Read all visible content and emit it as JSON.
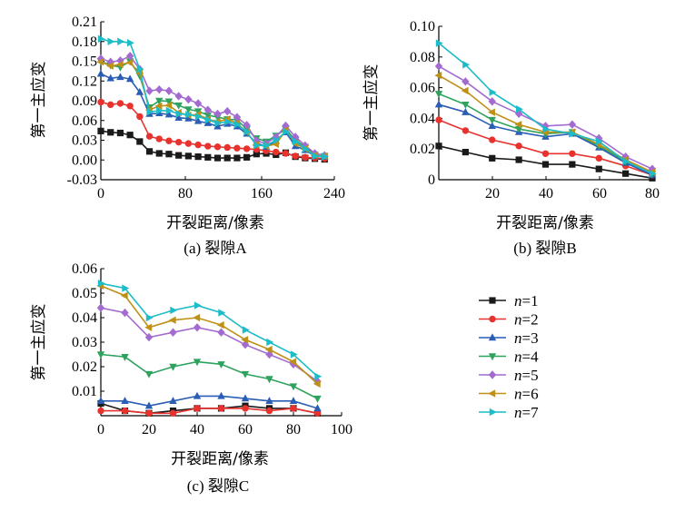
{
  "chart_data": [
    {
      "type": "line",
      "caption": "(a) 裂隙A",
      "xlabel": "开裂距离/像素",
      "ylabel": "第一主应变",
      "xlim": [
        0,
        240
      ],
      "ylim": [
        -0.03,
        0.21
      ],
      "xticks": [
        0,
        80,
        160,
        240
      ],
      "yticks": [
        "-0.03",
        "0.00",
        "0.03",
        "0.06",
        "0.09",
        "0.12",
        "0.15",
        "0.18",
        "0.21"
      ],
      "x": [
        0,
        10,
        20,
        30,
        40,
        50,
        60,
        70,
        80,
        90,
        100,
        110,
        120,
        130,
        140,
        150,
        160,
        170,
        180,
        190,
        200,
        210,
        220,
        230
      ],
      "series": [
        {
          "name": "n=1",
          "values": [
            0.044,
            0.042,
            0.041,
            0.038,
            0.028,
            0.013,
            0.01,
            0.009,
            0.007,
            0.006,
            0.005,
            0.004,
            0.003,
            0.003,
            0.003,
            0.004,
            0.009,
            0.01,
            0.008,
            0.011,
            0.005,
            0.003,
            0.002,
            0.001
          ]
        },
        {
          "name": "n=2",
          "values": [
            0.088,
            0.084,
            0.086,
            0.082,
            0.066,
            0.036,
            0.032,
            0.029,
            0.027,
            0.025,
            0.023,
            0.021,
            0.02,
            0.019,
            0.018,
            0.017,
            0.016,
            0.014,
            0.012,
            0.01,
            0.006,
            0.004,
            0.003,
            0.002
          ]
        },
        {
          "name": "n=3",
          "values": [
            0.131,
            0.124,
            0.126,
            0.123,
            0.103,
            0.07,
            0.071,
            0.069,
            0.064,
            0.063,
            0.059,
            0.056,
            0.051,
            0.055,
            0.051,
            0.04,
            0.026,
            0.02,
            0.029,
            0.042,
            0.021,
            0.015,
            0.006,
            0.005
          ]
        },
        {
          "name": "n=4",
          "values": [
            0.15,
            0.144,
            0.141,
            0.15,
            0.128,
            0.08,
            0.09,
            0.089,
            0.083,
            0.077,
            0.074,
            0.068,
            0.065,
            0.062,
            0.061,
            0.047,
            0.033,
            0.028,
            0.037,
            0.047,
            0.03,
            0.02,
            0.008,
            0.006
          ]
        },
        {
          "name": "n=5",
          "values": [
            0.154,
            0.149,
            0.151,
            0.158,
            0.138,
            0.105,
            0.107,
            0.105,
            0.097,
            0.092,
            0.086,
            0.076,
            0.07,
            0.074,
            0.065,
            0.053,
            0.029,
            0.025,
            0.035,
            0.052,
            0.035,
            0.022,
            0.01,
            0.007
          ]
        },
        {
          "name": "n=6",
          "values": [
            0.149,
            0.143,
            0.145,
            0.148,
            0.132,
            0.076,
            0.082,
            0.083,
            0.072,
            0.068,
            0.069,
            0.062,
            0.058,
            0.062,
            0.056,
            0.042,
            0.023,
            0.021,
            0.024,
            0.045,
            0.025,
            0.017,
            0.007,
            0.006
          ]
        },
        {
          "name": "n=7",
          "values": [
            0.184,
            0.18,
            0.18,
            0.178,
            0.138,
            0.073,
            0.075,
            0.075,
            0.07,
            0.069,
            0.066,
            0.061,
            0.056,
            0.058,
            0.054,
            0.043,
            0.022,
            0.022,
            0.03,
            0.043,
            0.028,
            0.017,
            0.006,
            0.005
          ]
        }
      ]
    },
    {
      "type": "line",
      "caption": "(b) 裂隙B",
      "xlabel": "开裂距离/像素",
      "ylabel": "第一主应变",
      "xlim": [
        0,
        80
      ],
      "ylim": [
        0,
        0.1
      ],
      "xticks": [
        20,
        40,
        60,
        80
      ],
      "yticks": [
        "0",
        "0.02",
        "0.04",
        "0.06",
        "0.08",
        "0.10"
      ],
      "x": [
        0,
        10,
        20,
        30,
        40,
        50,
        60,
        70,
        80
      ],
      "series": [
        {
          "name": "n=1",
          "values": [
            0.022,
            0.018,
            0.014,
            0.013,
            0.01,
            0.01,
            0.007,
            0.004,
            0.001
          ]
        },
        {
          "name": "n=2",
          "values": [
            0.039,
            0.032,
            0.026,
            0.022,
            0.017,
            0.017,
            0.014,
            0.009,
            0.003
          ]
        },
        {
          "name": "n=3",
          "values": [
            0.049,
            0.044,
            0.035,
            0.031,
            0.028,
            0.03,
            0.021,
            0.011,
            0.003
          ]
        },
        {
          "name": "n=4",
          "values": [
            0.056,
            0.049,
            0.039,
            0.033,
            0.03,
            0.031,
            0.022,
            0.012,
            0.004
          ]
        },
        {
          "name": "n=5",
          "values": [
            0.074,
            0.064,
            0.051,
            0.043,
            0.035,
            0.036,
            0.027,
            0.015,
            0.007
          ]
        },
        {
          "name": "n=6",
          "values": [
            0.068,
            0.058,
            0.044,
            0.036,
            0.031,
            0.031,
            0.023,
            0.013,
            0.005
          ]
        },
        {
          "name": "n=7",
          "values": [
            0.089,
            0.075,
            0.057,
            0.046,
            0.033,
            0.03,
            0.025,
            0.012,
            0.004
          ]
        }
      ]
    },
    {
      "type": "line",
      "caption": "(c) 裂隙C",
      "xlabel": "开裂距离/像素",
      "ylabel": "第一主应变",
      "xlim": [
        0,
        100
      ],
      "ylim": [
        0,
        0.06
      ],
      "xticks": [
        0,
        20,
        40,
        60,
        80,
        100
      ],
      "yticks": [
        "0.01",
        "0.02",
        "0.03",
        "0.04",
        "0.05",
        "0.06"
      ],
      "x": [
        0,
        10,
        20,
        30,
        40,
        50,
        60,
        70,
        80,
        90
      ],
      "series": [
        {
          "name": "n=1",
          "values": [
            0.005,
            0.002,
            0.001,
            0.002,
            0.003,
            0.003,
            0.004,
            0.003,
            0.003,
            0.001
          ]
        },
        {
          "name": "n=2",
          "values": [
            0.002,
            0.002,
            0.001,
            0.001,
            0.003,
            0.003,
            0.003,
            0.002,
            0.003,
            0.001
          ]
        },
        {
          "name": "n=3",
          "values": [
            0.006,
            0.006,
            0.004,
            0.006,
            0.008,
            0.008,
            0.007,
            0.006,
            0.006,
            0.003
          ]
        },
        {
          "name": "n=4",
          "values": [
            0.025,
            0.024,
            0.017,
            0.02,
            0.022,
            0.021,
            0.017,
            0.015,
            0.012,
            0.007
          ]
        },
        {
          "name": "n=5",
          "values": [
            0.044,
            0.042,
            0.032,
            0.034,
            0.036,
            0.034,
            0.029,
            0.025,
            0.021,
            0.014
          ]
        },
        {
          "name": "n=6",
          "values": [
            0.053,
            0.049,
            0.036,
            0.039,
            0.04,
            0.037,
            0.031,
            0.027,
            0.022,
            0.013
          ]
        },
        {
          "name": "n=7",
          "values": [
            0.054,
            0.052,
            0.04,
            0.043,
            0.045,
            0.042,
            0.035,
            0.03,
            0.025,
            0.016
          ]
        }
      ]
    }
  ],
  "legend": [
    {
      "name": "n=1",
      "italic": "n",
      "rest": "=1",
      "color": "#1a1a1a",
      "marker": "square"
    },
    {
      "name": "n=2",
      "italic": "n",
      "rest": "=2",
      "color": "#e8322e",
      "marker": "circle"
    },
    {
      "name": "n=3",
      "italic": "n",
      "rest": "=3",
      "color": "#2a5db5",
      "marker": "triangle-up"
    },
    {
      "name": "n=4",
      "italic": "n",
      "rest": "=4",
      "color": "#2fa35e",
      "marker": "triangle-down"
    },
    {
      "name": "n=5",
      "italic": "n",
      "rest": "=5",
      "color": "#a36bd0",
      "marker": "diamond"
    },
    {
      "name": "n=6",
      "italic": "n",
      "rest": "=6",
      "color": "#bf9016",
      "marker": "triangle-left"
    },
    {
      "name": "n=7",
      "italic": "n",
      "rest": "=7",
      "color": "#1cbcc8",
      "marker": "triangle-right"
    }
  ]
}
